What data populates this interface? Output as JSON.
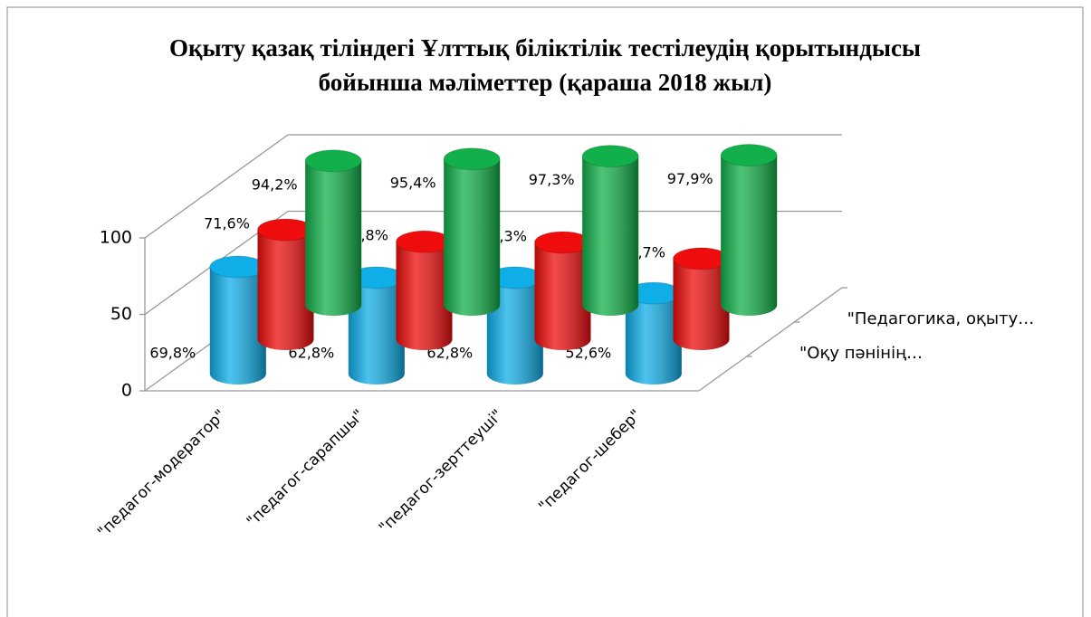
{
  "chart_data": {
    "type": "cylinder3d",
    "title": [
      "Оқыту қазақ тіліндегі Ұлттық біліктілік тестілеудің қорытындысы",
      "бойынша мәліметтер  (қараша 2018 жыл)"
    ],
    "categories": [
      "\"педагог-модератор\"",
      "\"педагог-сарапшы\"",
      "\"педагог-зерттеуші\"",
      "\"педагог-шебер\""
    ],
    "series": [
      {
        "name": null,
        "color": "#10aee8",
        "values": [
          69.8,
          62.8,
          62.8,
          52.6
        ],
        "value_labels": [
          "69,8%",
          "62,8%",
          "62,8%",
          "52,6%"
        ]
      },
      {
        "name": "\"Оқу пәнінің…",
        "color": "#ee0c0c",
        "values": [
          71.6,
          63.8,
          63.3,
          52.7
        ],
        "value_labels": [
          "71,6%",
          "63,8%",
          "63,3%",
          "52,7%"
        ]
      },
      {
        "name": "\"Педагогика, оқыту…",
        "color": "#12b04a",
        "values": [
          94.2,
          95.4,
          97.3,
          97.9
        ],
        "value_labels": [
          "94,2%",
          "95,4%",
          "97,3%",
          "97,9%"
        ]
      }
    ],
    "ylim": [
      0,
      100
    ],
    "yticks": [
      0,
      50,
      100
    ],
    "grid": true
  }
}
